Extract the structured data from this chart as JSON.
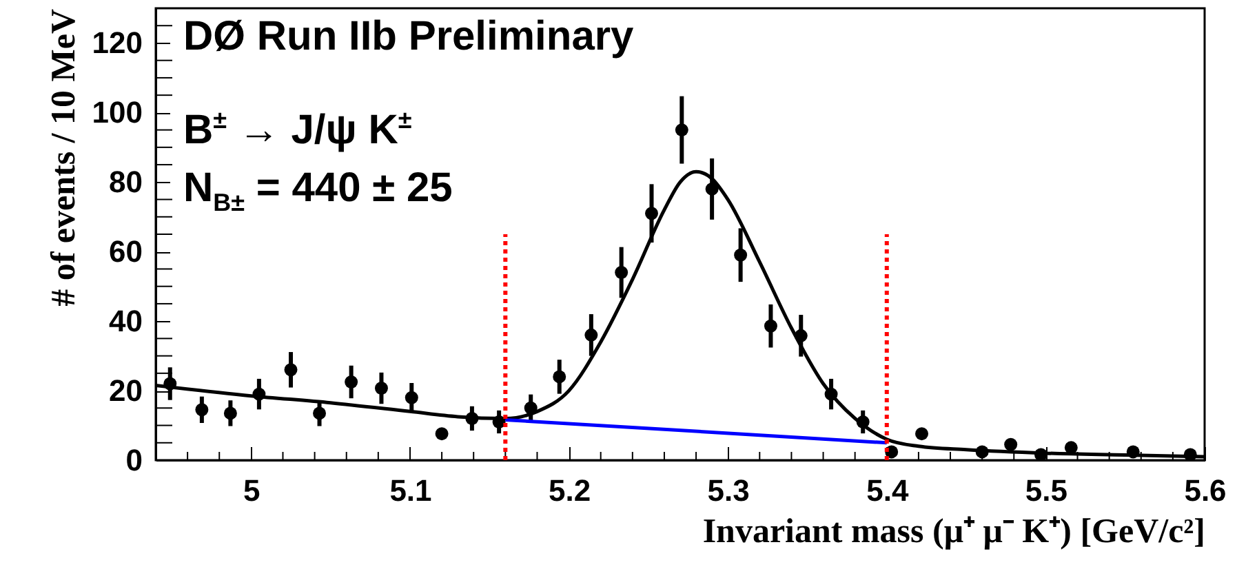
{
  "chart_data": {
    "type": "scatter",
    "xlabel": "Invariant mass (μ⁺ μ⁻ K⁺)  [GeV/c²]",
    "ylabel": "# of events / 10 MeV",
    "annotations": [
      "DØ Run IIb Preliminary",
      "B$^{±}$ → J/ψ K$^{±}$",
      "N$_{B±}$  = 440 ± 25"
    ],
    "xlim": [
      4.94,
      5.6
    ],
    "ylim": [
      0,
      130
    ],
    "xticks": [
      {
        "value": 4.96,
        "label": null
      },
      {
        "value": 4.98,
        "label": null
      },
      5,
      {
        "value": 5.02,
        "label": null
      },
      {
        "value": 5.04,
        "label": null
      },
      {
        "value": 5.06,
        "label": null
      },
      {
        "value": 5.08,
        "label": null
      },
      5.1,
      {
        "value": 5.12,
        "label": null
      },
      {
        "value": 5.14,
        "label": null
      },
      {
        "value": 5.16,
        "label": null
      },
      {
        "value": 5.18,
        "label": null
      },
      5.2,
      {
        "value": 5.22,
        "label": null
      },
      {
        "value": 5.24,
        "label": null
      },
      {
        "value": 5.26,
        "label": null
      },
      {
        "value": 5.28,
        "label": null
      },
      5.3,
      {
        "value": 5.32,
        "label": null
      },
      {
        "value": 5.34,
        "label": null
      },
      {
        "value": 5.36,
        "label": null
      },
      {
        "value": 5.38,
        "label": null
      },
      5.4,
      {
        "value": 5.42,
        "label": null
      },
      {
        "value": 5.44,
        "label": null
      },
      {
        "value": 5.46,
        "label": null
      },
      {
        "value": 5.48,
        "label": null
      },
      5.5,
      {
        "value": 5.52,
        "label": null
      },
      {
        "value": 5.54,
        "label": null
      },
      {
        "value": 5.56,
        "label": null
      },
      {
        "value": 5.58,
        "label": null
      },
      5.6
    ],
    "yticks": [
      0,
      {
        "value": 5,
        "label": null
      },
      {
        "value": 10,
        "label": null
      },
      {
        "value": 15,
        "label": null
      },
      20,
      {
        "value": 25,
        "label": null
      },
      {
        "value": 30,
        "label": null
      },
      {
        "value": 35,
        "label": null
      },
      40,
      {
        "value": 45,
        "label": null
      },
      {
        "value": 50,
        "label": null
      },
      {
        "value": 55,
        "label": null
      },
      60,
      {
        "value": 65,
        "label": null
      },
      {
        "value": 70,
        "label": null
      },
      {
        "value": 75,
        "label": null
      },
      80,
      {
        "value": 85,
        "label": null
      },
      {
        "value": 90,
        "label": null
      },
      {
        "value": 95,
        "label": null
      },
      100,
      {
        "value": 105,
        "label": null
      },
      {
        "value": 110,
        "label": null
      },
      {
        "value": 115,
        "label": null
      },
      120,
      {
        "value": 125,
        "label": null
      }
    ],
    "grid": false,
    "marker": "circle",
    "ref_lines": [
      {
        "axis": "x",
        "value": 5.16,
        "color": "#ff0000",
        "line_style": "dotted"
      },
      {
        "axis": "x",
        "value": 5.4,
        "color": "#ff0000",
        "line_style": "dotted"
      }
    ],
    "series": [
      {
        "type": "scatter",
        "color": "#000000",
        "x": [
          4.949,
          4.969,
          4.987,
          5.005,
          5.025,
          5.043,
          5.063,
          5.082,
          5.101,
          5.12,
          5.139,
          5.156,
          5.176,
          5.194,
          5.214,
          5.233,
          5.252,
          5.271,
          5.29,
          5.308,
          5.327,
          5.346,
          5.365,
          5.385,
          5.403,
          5.422,
          5.46,
          5.478,
          5.497,
          5.516,
          5.555,
          5.591
        ],
        "values": [
          22,
          14.5,
          13.5,
          19,
          26,
          13.5,
          22.5,
          20.7,
          18,
          7.6,
          12,
          11,
          15,
          24,
          36,
          54,
          71,
          95,
          78,
          59,
          38.6,
          35.8,
          19,
          11,
          2.4,
          7.6,
          2.4,
          4.5,
          1.6,
          3.6,
          2.4,
          1.6
        ],
        "errors": [
          4.7,
          3.8,
          3.7,
          4.4,
          5.1,
          3.7,
          4.7,
          4.5,
          4.2,
          null,
          3.5,
          3.3,
          3.9,
          4.9,
          6,
          7.3,
          8.4,
          9.7,
          8.8,
          7.7,
          6.2,
          6,
          4.4,
          3.3,
          null,
          null,
          null,
          null,
          null,
          null,
          null,
          null
        ]
      },
      {
        "type": "line",
        "color": "#000000",
        "marker": "none",
        "line_style": "solid",
        "x": [
          4.94,
          5.0,
          5.05,
          5.1,
          5.13,
          5.16,
          5.18,
          5.2,
          5.22,
          5.24,
          5.26,
          5.27,
          5.28,
          5.29,
          5.3,
          5.32,
          5.34,
          5.36,
          5.38,
          5.4,
          5.42,
          5.45,
          5.5,
          5.55,
          5.6
        ],
        "values": [
          21.5,
          18.5,
          16.5,
          14,
          12.5,
          12,
          14,
          20,
          34,
          52,
          72,
          80,
          83,
          81,
          75,
          57,
          38,
          22,
          12,
          6,
          4,
          3,
          2,
          1.5,
          1
        ]
      },
      {
        "type": "line",
        "color": "#0000ff",
        "marker": "none",
        "line_style": "solid",
        "x": [
          5.16,
          5.4
        ],
        "values": [
          11.6,
          5
        ]
      }
    ]
  }
}
